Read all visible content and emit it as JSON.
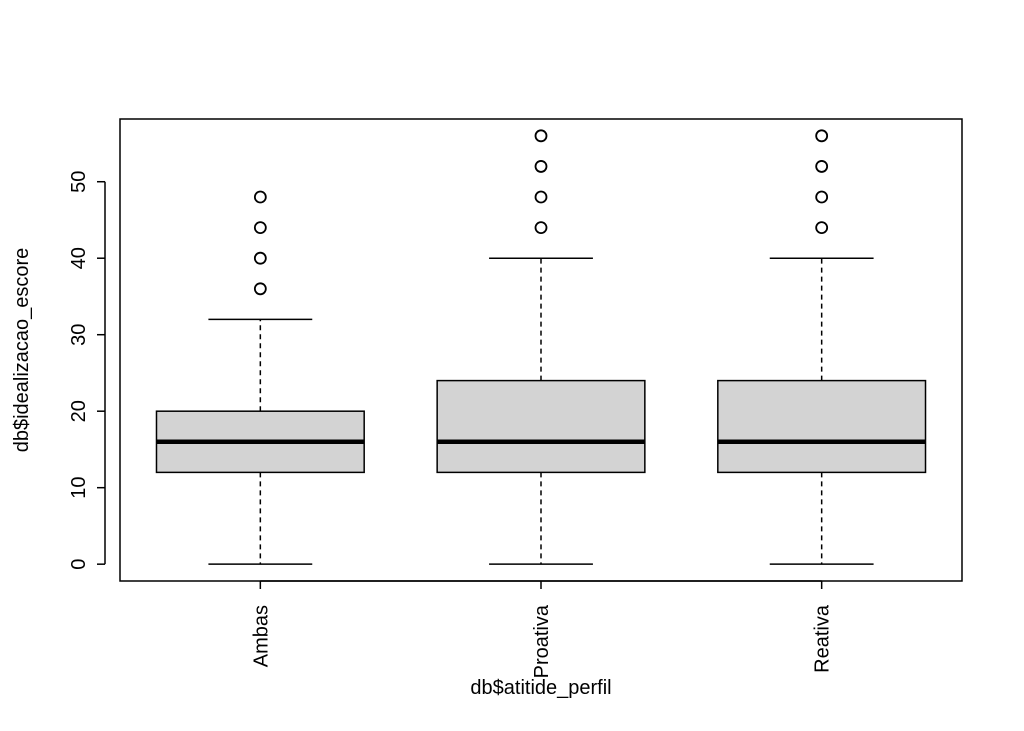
{
  "chart_data": {
    "type": "boxplot",
    "title": "",
    "xlabel": "db$atitide_perfil",
    "ylabel": "db$idealizacao_escore",
    "ylim": [
      -2.2,
      58.2
    ],
    "yticks": [
      0,
      10,
      20,
      30,
      40,
      50
    ],
    "grid": false,
    "box_fill": "#d3d3d3",
    "categories": [
      "Ambas",
      "Proativa",
      "Reativa"
    ],
    "boxes": [
      {
        "name": "Ambas",
        "whisker_low": 0,
        "q1": 12,
        "median": 16,
        "q3": 20,
        "whisker_high": 32,
        "outliers": [
          36,
          40,
          44,
          48
        ]
      },
      {
        "name": "Proativa",
        "whisker_low": 0,
        "q1": 12,
        "median": 16,
        "q3": 24,
        "whisker_high": 40,
        "outliers": [
          44,
          48,
          52,
          56
        ]
      },
      {
        "name": "Reativa",
        "whisker_low": 0,
        "q1": 12,
        "median": 16,
        "q3": 24,
        "whisker_high": 40,
        "outliers": [
          44,
          48,
          52,
          56
        ]
      }
    ]
  }
}
